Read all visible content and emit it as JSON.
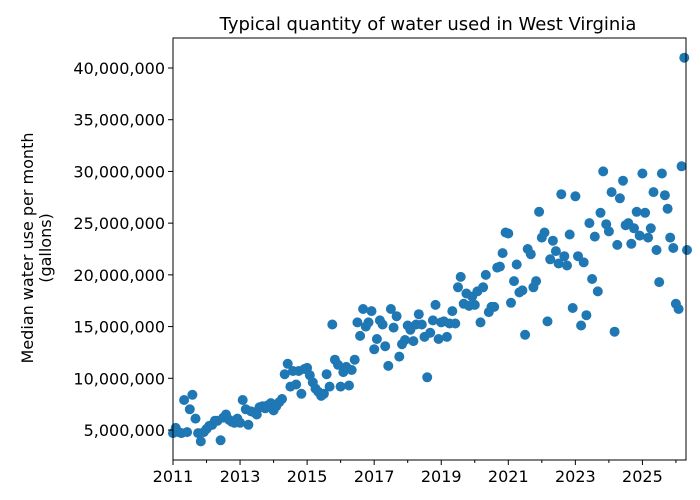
{
  "chart_data": {
    "type": "scatter",
    "title": "Typical quantity of water used in West Virginia",
    "xlabel": "",
    "ylabel_lines": [
      "Median water use per month",
      "(gallons)"
    ],
    "xlim": [
      2011.0,
      2026.3
    ],
    "ylim": [
      2100000,
      42900000
    ],
    "x_ticks": [
      2011,
      2013,
      2015,
      2017,
      2019,
      2021,
      2023,
      2025
    ],
    "y_ticks": [
      5000000,
      10000000,
      15000000,
      20000000,
      25000000,
      30000000,
      35000000,
      40000000
    ],
    "grid": false,
    "marker_color": "#1f77b4",
    "points": [
      [
        2011.0,
        4700000
      ],
      [
        2011.08,
        5200000
      ],
      [
        2011.17,
        4800000
      ],
      [
        2011.25,
        4700000
      ],
      [
        2011.33,
        7900000
      ],
      [
        2011.42,
        4800000
      ],
      [
        2011.5,
        7000000
      ],
      [
        2011.58,
        8400000
      ],
      [
        2011.67,
        6100000
      ],
      [
        2011.75,
        4700000
      ],
      [
        2011.83,
        3900000
      ],
      [
        2011.92,
        4800000
      ],
      [
        2012.0,
        5100000
      ],
      [
        2012.08,
        5400000
      ],
      [
        2012.17,
        5500000
      ],
      [
        2012.25,
        5900000
      ],
      [
        2012.33,
        5900000
      ],
      [
        2012.42,
        4000000
      ],
      [
        2012.5,
        6200000
      ],
      [
        2012.58,
        6500000
      ],
      [
        2012.67,
        6000000
      ],
      [
        2012.75,
        5800000
      ],
      [
        2012.83,
        5700000
      ],
      [
        2012.92,
        6100000
      ],
      [
        2013.0,
        5700000
      ],
      [
        2013.08,
        7900000
      ],
      [
        2013.17,
        7000000
      ],
      [
        2013.25,
        5500000
      ],
      [
        2013.33,
        6800000
      ],
      [
        2013.42,
        6700000
      ],
      [
        2013.5,
        6500000
      ],
      [
        2013.58,
        7200000
      ],
      [
        2013.67,
        7300000
      ],
      [
        2013.75,
        7100000
      ],
      [
        2013.83,
        7400000
      ],
      [
        2013.92,
        7600000
      ],
      [
        2014.0,
        6900000
      ],
      [
        2014.08,
        7300000
      ],
      [
        2014.17,
        7700000
      ],
      [
        2014.25,
        8000000
      ],
      [
        2014.33,
        10400000
      ],
      [
        2014.42,
        11400000
      ],
      [
        2014.5,
        9200000
      ],
      [
        2014.58,
        10700000
      ],
      [
        2014.67,
        9400000
      ],
      [
        2014.75,
        10700000
      ],
      [
        2014.83,
        8500000
      ],
      [
        2014.92,
        10900000
      ],
      [
        2015.0,
        11000000
      ],
      [
        2015.08,
        10300000
      ],
      [
        2015.17,
        9600000
      ],
      [
        2015.25,
        9000000
      ],
      [
        2015.33,
        8700000
      ],
      [
        2015.42,
        8300000
      ],
      [
        2015.5,
        8500000
      ],
      [
        2015.58,
        10400000
      ],
      [
        2015.67,
        9200000
      ],
      [
        2015.75,
        15200000
      ],
      [
        2015.83,
        11800000
      ],
      [
        2015.92,
        11300000
      ],
      [
        2016.0,
        9200000
      ],
      [
        2016.08,
        10600000
      ],
      [
        2016.17,
        11100000
      ],
      [
        2016.25,
        9300000
      ],
      [
        2016.33,
        10800000
      ],
      [
        2016.42,
        11800000
      ],
      [
        2016.5,
        15400000
      ],
      [
        2016.58,
        14100000
      ],
      [
        2016.67,
        16700000
      ],
      [
        2016.75,
        15000000
      ],
      [
        2016.83,
        15400000
      ],
      [
        2016.92,
        16500000
      ],
      [
        2017.0,
        12800000
      ],
      [
        2017.08,
        13800000
      ],
      [
        2017.17,
        15600000
      ],
      [
        2017.25,
        15200000
      ],
      [
        2017.33,
        13100000
      ],
      [
        2017.42,
        11200000
      ],
      [
        2017.5,
        16700000
      ],
      [
        2017.58,
        14900000
      ],
      [
        2017.67,
        16000000
      ],
      [
        2017.75,
        12100000
      ],
      [
        2017.83,
        13300000
      ],
      [
        2017.92,
        13700000
      ],
      [
        2018.0,
        15100000
      ],
      [
        2018.08,
        14700000
      ],
      [
        2018.17,
        13600000
      ],
      [
        2018.25,
        15200000
      ],
      [
        2018.33,
        16200000
      ],
      [
        2018.42,
        15200000
      ],
      [
        2018.5,
        14000000
      ],
      [
        2018.58,
        10100000
      ],
      [
        2018.67,
        14400000
      ],
      [
        2018.75,
        15600000
      ],
      [
        2018.83,
        17100000
      ],
      [
        2018.92,
        13800000
      ],
      [
        2019.0,
        15400000
      ],
      [
        2019.08,
        15500000
      ],
      [
        2019.17,
        14000000
      ],
      [
        2019.25,
        15300000
      ],
      [
        2019.33,
        16500000
      ],
      [
        2019.42,
        15300000
      ],
      [
        2019.5,
        18800000
      ],
      [
        2019.58,
        19800000
      ],
      [
        2019.67,
        17200000
      ],
      [
        2019.75,
        18200000
      ],
      [
        2019.83,
        17000000
      ],
      [
        2019.92,
        17900000
      ],
      [
        2020.0,
        17100000
      ],
      [
        2020.08,
        18400000
      ],
      [
        2020.17,
        15400000
      ],
      [
        2020.25,
        18800000
      ],
      [
        2020.33,
        20000000
      ],
      [
        2020.42,
        16400000
      ],
      [
        2020.5,
        16900000
      ],
      [
        2020.58,
        16900000
      ],
      [
        2020.67,
        20700000
      ],
      [
        2020.75,
        20800000
      ],
      [
        2020.83,
        22100000
      ],
      [
        2020.92,
        24100000
      ],
      [
        2021.0,
        24000000
      ],
      [
        2021.08,
        17300000
      ],
      [
        2021.17,
        19400000
      ],
      [
        2021.25,
        21000000
      ],
      [
        2021.33,
        18300000
      ],
      [
        2021.42,
        18500000
      ],
      [
        2021.5,
        14200000
      ],
      [
        2021.58,
        22500000
      ],
      [
        2021.67,
        22000000
      ],
      [
        2021.75,
        18800000
      ],
      [
        2021.83,
        19400000
      ],
      [
        2021.92,
        26100000
      ],
      [
        2022.0,
        23600000
      ],
      [
        2022.08,
        24100000
      ],
      [
        2022.17,
        15500000
      ],
      [
        2022.25,
        21500000
      ],
      [
        2022.33,
        23300000
      ],
      [
        2022.42,
        22300000
      ],
      [
        2022.5,
        21100000
      ],
      [
        2022.58,
        27800000
      ],
      [
        2022.67,
        21800000
      ],
      [
        2022.75,
        20900000
      ],
      [
        2022.83,
        23900000
      ],
      [
        2022.92,
        16800000
      ],
      [
        2023.0,
        27600000
      ],
      [
        2023.08,
        21800000
      ],
      [
        2023.17,
        15100000
      ],
      [
        2023.25,
        21200000
      ],
      [
        2023.33,
        16100000
      ],
      [
        2023.42,
        25000000
      ],
      [
        2023.5,
        19600000
      ],
      [
        2023.58,
        23700000
      ],
      [
        2023.67,
        18400000
      ],
      [
        2023.75,
        26000000
      ],
      [
        2023.83,
        30000000
      ],
      [
        2023.92,
        24900000
      ],
      [
        2024.0,
        24200000
      ],
      [
        2024.08,
        28000000
      ],
      [
        2024.17,
        14500000
      ],
      [
        2024.25,
        22900000
      ],
      [
        2024.33,
        27400000
      ],
      [
        2024.42,
        29100000
      ],
      [
        2024.5,
        24800000
      ],
      [
        2024.58,
        25000000
      ],
      [
        2024.67,
        23000000
      ],
      [
        2024.75,
        24500000
      ],
      [
        2024.83,
        26100000
      ],
      [
        2024.92,
        23800000
      ],
      [
        2025.0,
        29800000
      ],
      [
        2025.08,
        26000000
      ],
      [
        2025.17,
        23600000
      ],
      [
        2025.25,
        24500000
      ],
      [
        2025.33,
        28000000
      ],
      [
        2025.42,
        22400000
      ],
      [
        2025.5,
        19300000
      ],
      [
        2025.58,
        29800000
      ],
      [
        2025.67,
        27700000
      ],
      [
        2025.75,
        26400000
      ],
      [
        2025.83,
        23600000
      ],
      [
        2025.92,
        22600000
      ],
      [
        2026.0,
        17200000
      ],
      [
        2026.08,
        16700000
      ],
      [
        2026.17,
        30500000
      ],
      [
        2026.25,
        41000000
      ],
      [
        2026.33,
        22400000
      ]
    ]
  }
}
